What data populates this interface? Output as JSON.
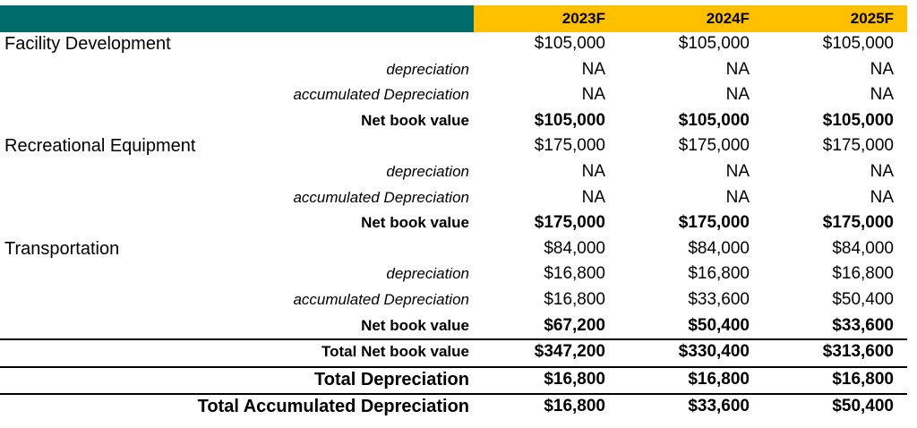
{
  "header": {
    "years": [
      "2023F",
      "2024F",
      "2025F"
    ],
    "colors": {
      "left_band": "#006B6B",
      "right_band": "#FFC000"
    }
  },
  "rows": [
    {
      "label": "Facility Development",
      "style": "main",
      "values": [
        "$105,000",
        "$105,000",
        "$105,000"
      ]
    },
    {
      "label": "depreciation",
      "style": "sub",
      "values": [
        "NA",
        "NA",
        "NA"
      ]
    },
    {
      "label": "accumulated Depreciation",
      "style": "sub",
      "values": [
        "NA",
        "NA",
        "NA"
      ]
    },
    {
      "label": "Net book value",
      "style": "net",
      "values": [
        "$105,000",
        "$105,000",
        "$105,000"
      ]
    },
    {
      "label": "Recreational Equipment",
      "style": "main",
      "values": [
        "$175,000",
        "$175,000",
        "$175,000"
      ]
    },
    {
      "label": "depreciation",
      "style": "sub",
      "values": [
        "NA",
        "NA",
        "NA"
      ]
    },
    {
      "label": "accumulated Depreciation",
      "style": "sub",
      "values": [
        "NA",
        "NA",
        "NA"
      ]
    },
    {
      "label": "Net book value",
      "style": "net",
      "values": [
        "$175,000",
        "$175,000",
        "$175,000"
      ]
    },
    {
      "label": "Transportation",
      "style": "main",
      "values": [
        "$84,000",
        "$84,000",
        "$84,000"
      ]
    },
    {
      "label": "depreciation",
      "style": "sub",
      "values": [
        "$16,800",
        "$16,800",
        "$16,800"
      ]
    },
    {
      "label": "accumulated Depreciation",
      "style": "sub",
      "values": [
        "$16,800",
        "$33,600",
        "$50,400"
      ]
    },
    {
      "label": "Net book value",
      "style": "net",
      "values": [
        "$67,200",
        "$50,400",
        "$33,600"
      ]
    }
  ],
  "totals": [
    {
      "label": "Total Net book value",
      "values": [
        "$347,200",
        "$330,400",
        "$313,600"
      ]
    },
    {
      "label": "Total Depreciation",
      "values": [
        "$16,800",
        "$16,800",
        "$16,800"
      ]
    },
    {
      "label": "Total Accumulated Depreciation",
      "values": [
        "$16,800",
        "$33,600",
        "$50,400"
      ]
    }
  ]
}
